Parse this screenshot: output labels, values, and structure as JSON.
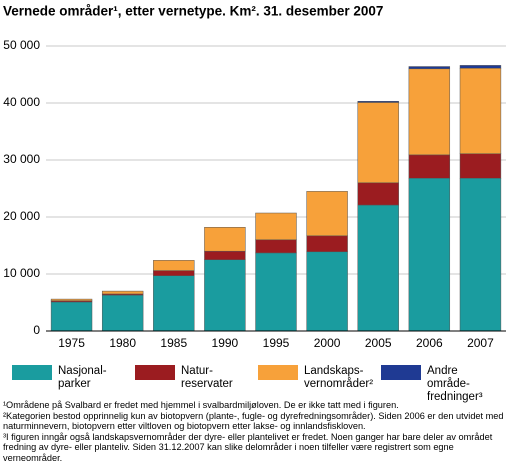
{
  "chart_data": {
    "type": "stacked-bar",
    "title": "Vernede områder¹, etter vernetype. Km². 31. desember 2007",
    "categories": [
      "1975",
      "1980",
      "1985",
      "1990",
      "1995",
      "2000",
      "2005",
      "2006",
      "2007"
    ],
    "series": [
      {
        "name": "Nasjonal-parker",
        "color": "#1a9c9f",
        "values": [
          5100,
          6300,
          9700,
          12500,
          13700,
          13900,
          22100,
          26800,
          26800
        ]
      },
      {
        "name": "Natur-reservater",
        "color": "#9b1c20",
        "values": [
          200,
          200,
          900,
          1500,
          2300,
          2800,
          3900,
          4100,
          4300
        ]
      },
      {
        "name": "Landskaps-vernområder²",
        "color": "#f7a13a",
        "values": [
          300,
          500,
          1800,
          4200,
          4700,
          7800,
          14100,
          15100,
          15000
        ]
      },
      {
        "name": "Andre område-fredninger³",
        "color": "#1f3a93",
        "values": [
          0,
          0,
          0,
          0,
          0,
          0,
          200,
          400,
          500
        ]
      }
    ],
    "ylim": [
      0,
      50000
    ],
    "yticks": [
      0,
      {
        "value": 10000,
        "label": "10 000"
      },
      {
        "value": 20000,
        "label": "20 000"
      },
      {
        "value": 30000,
        "label": "30 000"
      },
      {
        "value": 40000,
        "label": "40 000"
      },
      {
        "value": 50000,
        "label": "50 000"
      }
    ],
    "grid": true,
    "notes": [
      "¹Områdene på Svalbard er fredet med hjemmel i svalbardmiljøloven. De er ikke tatt med i figuren.",
      "²Kategorien bestod opprinnelig kun av biotopvern (plante-, fugle- og dyrefredningsområder). Siden 2006 er den utvidet med naturminnevern, biotopvern etter viltloven og biotopvern etter lakse- og innlandsfiskloven.",
      "³I figuren inngår også landskapsvernområder der dyre- eller plantelivet er fredet. Noen ganger har bare deler av området fredning av dyre- eller planteliv. Siden 31.12.2007 kan slike delområder i noen tilfeller være registrert som egne verneområder."
    ]
  }
}
